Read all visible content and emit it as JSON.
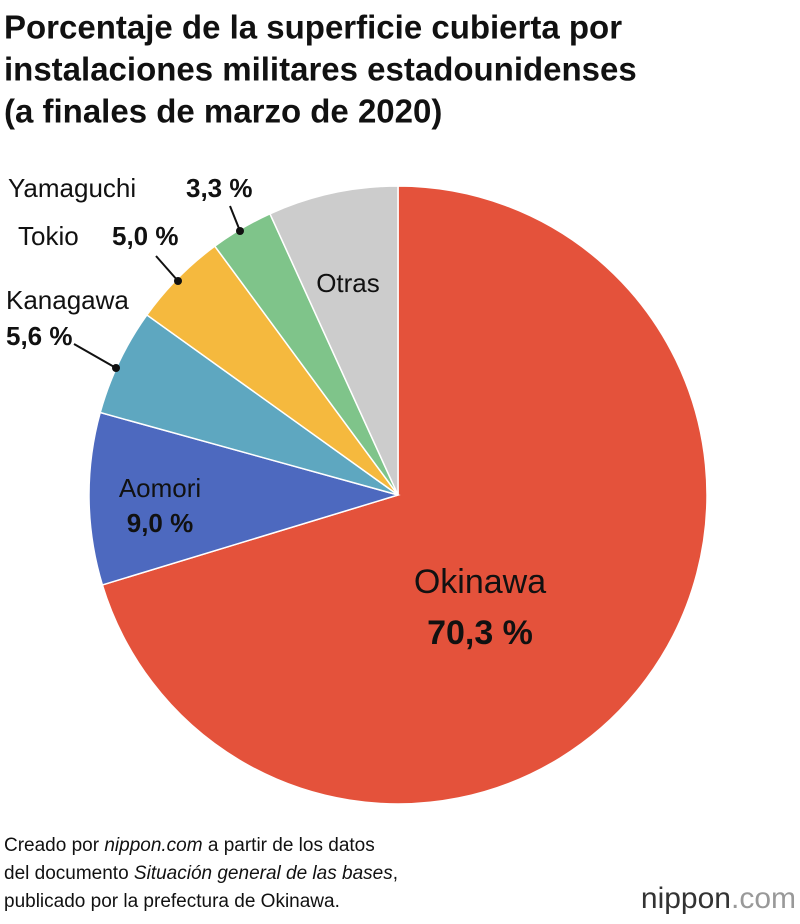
{
  "chart_data": {
    "type": "pie",
    "title": [
      "Porcentaje de la superficie cubierta por",
      "instalaciones militares estadounidenses",
      "(a finales de marzo de 2020)"
    ],
    "categories": [
      "Okinawa",
      "Aomori",
      "Kanagawa",
      "Tokio",
      "Yamaguchi",
      "Otras"
    ],
    "values": [
      70.3,
      9.0,
      5.6,
      5.0,
      3.3,
      6.8
    ],
    "value_labels": [
      "70,3 %",
      "9,0 %",
      "5,6 %",
      "5,0 %",
      "3,3 %",
      null
    ],
    "colors": [
      "#e4523b",
      "#4d69bf",
      "#5ea7c0",
      "#f5b93e",
      "#7fc48a",
      "#cccccc"
    ],
    "source": [
      [
        "Creado por ",
        "nippon.com",
        " a partir de los datos"
      ],
      [
        "del documento ",
        "Situación general de las bases",
        ","
      ],
      [
        "publicado por la prefectura de Okinawa."
      ]
    ],
    "logo": [
      "nippon",
      ".com"
    ]
  }
}
